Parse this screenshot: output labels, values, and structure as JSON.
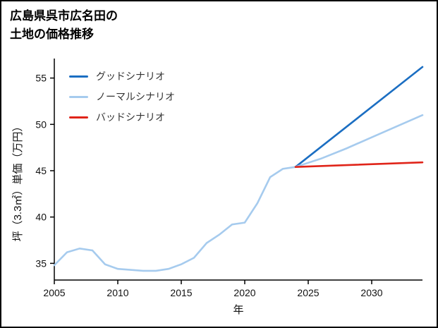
{
  "chart_data": {
    "type": "line",
    "title_lines": [
      "広島県呉市広名田の",
      "土地の価格推移"
    ],
    "xlabel": "年",
    "ylabel": "坪（3.3㎡）単価（万円）",
    "xlim": [
      2005,
      2034
    ],
    "ylim": [
      33.2,
      56.8
    ],
    "xticks": [
      2005,
      2010,
      2015,
      2020,
      2025,
      2030
    ],
    "yticks": [
      35,
      40,
      45,
      50,
      55
    ],
    "grid": false,
    "legend_position": "upper-left",
    "axis_color": "#000000",
    "series": [
      {
        "id": "history",
        "name": "",
        "color": "#a6cbee",
        "legend": false,
        "x": [
          2005,
          2006,
          2007,
          2008,
          2009,
          2010,
          2011,
          2012,
          2013,
          2014,
          2015,
          2016,
          2017,
          2018,
          2019,
          2020,
          2021,
          2022,
          2023,
          2024
        ],
        "y": [
          34.8,
          36.2,
          36.6,
          36.4,
          34.9,
          34.4,
          34.3,
          34.2,
          34.2,
          34.4,
          34.9,
          35.6,
          37.2,
          38.1,
          39.2,
          39.4,
          41.5,
          44.3,
          45.2,
          45.4
        ]
      },
      {
        "id": "good",
        "name": "グッドシナリオ",
        "color": "#1b6ec2",
        "legend": true,
        "x": [
          2024,
          2034
        ],
        "y": [
          45.4,
          56.2
        ]
      },
      {
        "id": "normal",
        "name": "ノーマルシナリオ",
        "color": "#a6cbee",
        "legend": true,
        "x": [
          2024,
          2026,
          2028,
          2030,
          2032,
          2034
        ],
        "y": [
          45.4,
          46.3,
          47.4,
          48.6,
          49.8,
          51.0
        ]
      },
      {
        "id": "bad",
        "name": "バッドシナリオ",
        "color": "#e02419",
        "legend": true,
        "x": [
          2024,
          2034
        ],
        "y": [
          45.4,
          45.9
        ]
      }
    ]
  }
}
